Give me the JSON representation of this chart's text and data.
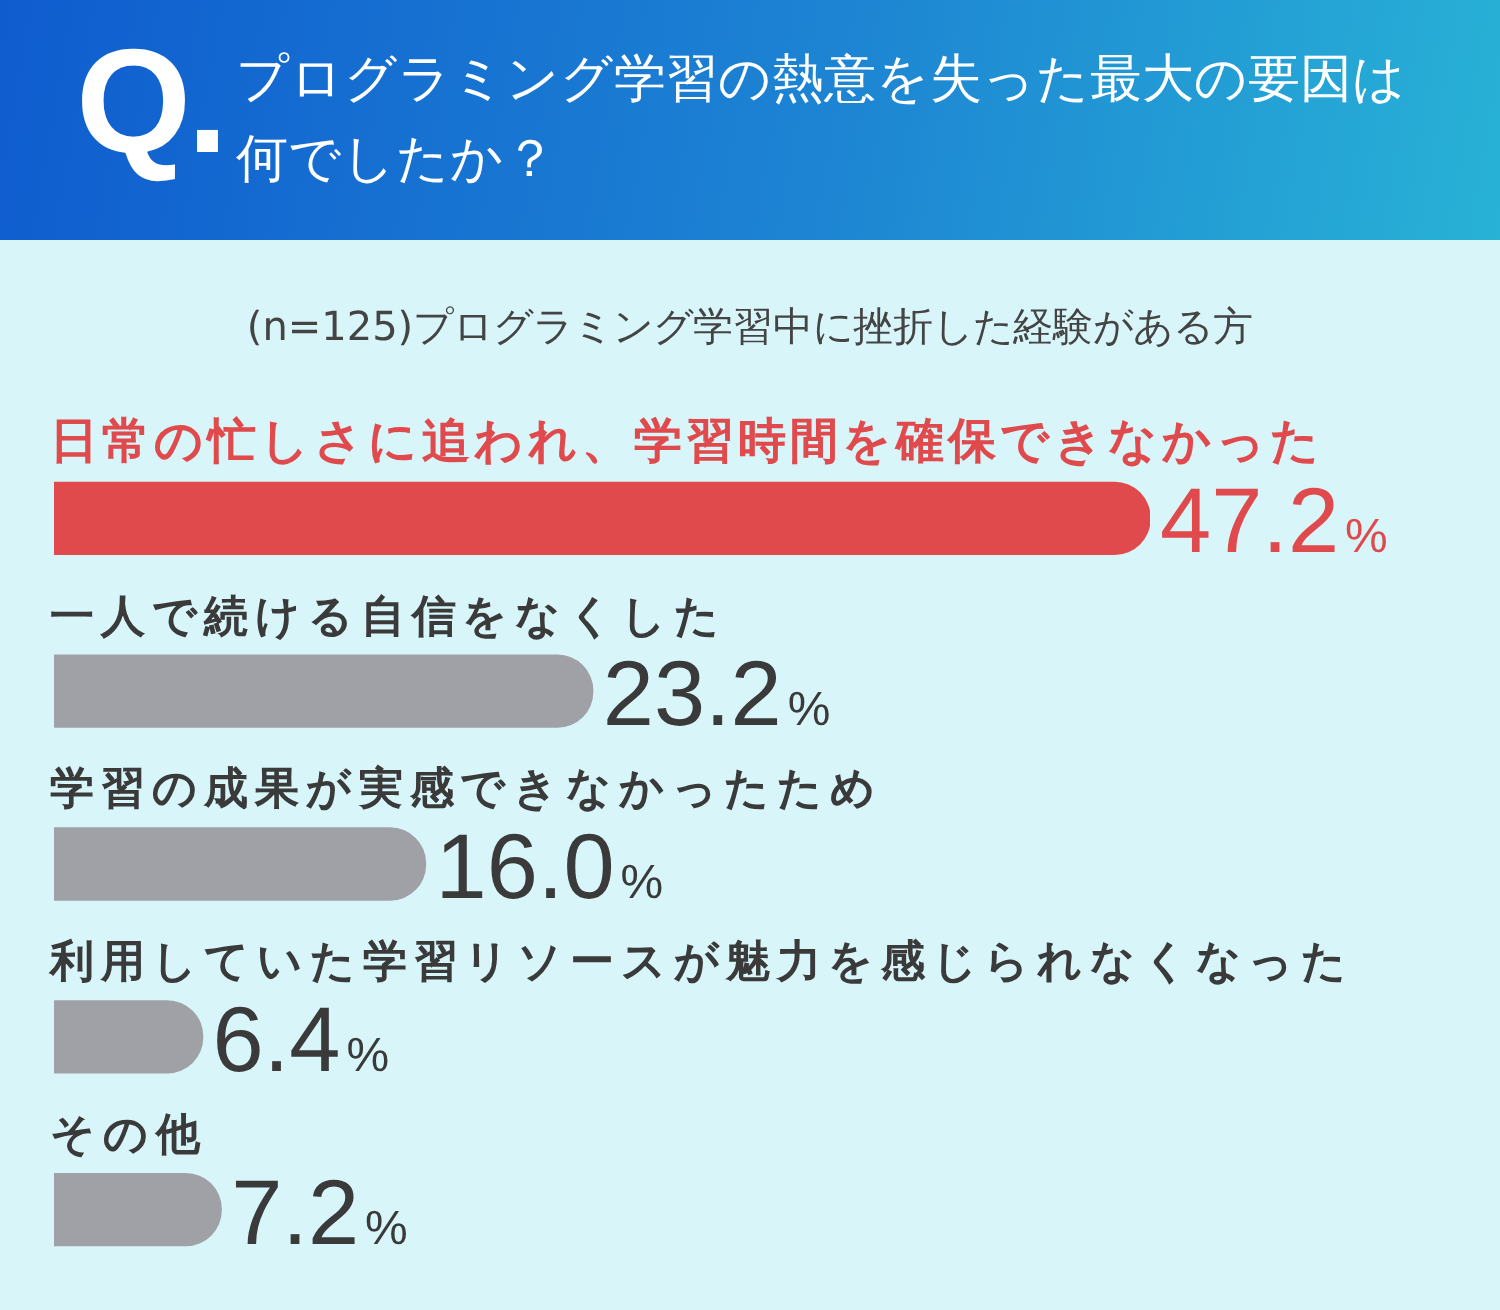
{
  "chart_data": {
    "type": "bar",
    "orientation": "horizontal",
    "title": "プログラミング学習の熱意を失った最大の要因は何でしたか？",
    "subtitle": "(n=125)プログラミング学習中に挫折した経験がある方",
    "annotations": [
      "Q."
    ],
    "categories": [
      "日常の忙しさに追われ、学習時間を確保できなかった",
      "一人で続ける自信をなくした",
      "学習の成果が実感できなかったため",
      "利用していた学習リソースが魅力を感じられなくなった",
      "その他"
    ],
    "values": [
      47.2,
      23.2,
      16.0,
      6.4,
      7.2
    ],
    "colors": [
      "#e04a4c",
      "#a0a1a6",
      "#a0a1a6",
      "#a0a1a6",
      "#a0a1a6"
    ],
    "value_labels": [
      "47.2%",
      "23.2%",
      "16.0%",
      "6.4%",
      "7.2%"
    ]
  }
}
